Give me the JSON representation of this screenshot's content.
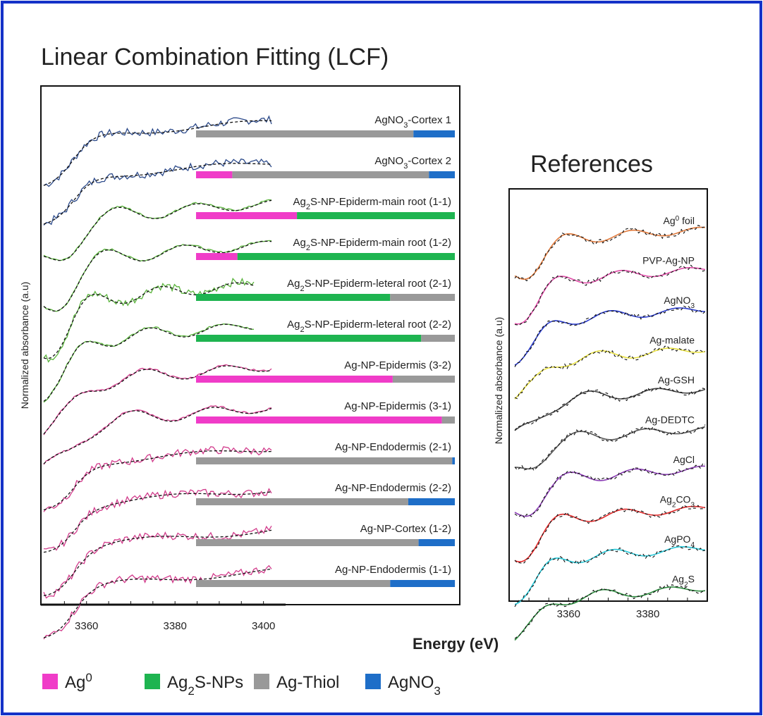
{
  "title": "Linear Combination Fitting (LCF)",
  "references_title": "References",
  "xlabel": "Energy (eV)",
  "colors": {
    "frame": "#1432c8",
    "Ag0": "#f03cc8",
    "Ag2S-NPs": "#1eb450",
    "Ag-Thiol": "#999999",
    "AgNO3": "#1e6ec8"
  },
  "legend": [
    {
      "key": "Ag0",
      "label": "Ag",
      "sup": "0",
      "color": "#f03cc8"
    },
    {
      "key": "Ag2S-NPs",
      "label": "Ag",
      "sub": "2",
      "rest": "S-NPs",
      "color": "#1eb450"
    },
    {
      "key": "Ag-Thiol",
      "label": "Ag-Thiol",
      "color": "#999999"
    },
    {
      "key": "AgNO3",
      "label": "AgNO",
      "sub": "3",
      "color": "#1e6ec8"
    }
  ],
  "chart_data": [
    {
      "type": "line",
      "panel": "LCF",
      "ylabel": "Normalized absorbance (a.u)",
      "xlim": [
        3350,
        3405
      ],
      "xticks": [
        "3360",
        "3380",
        "3400"
      ],
      "series": [
        {
          "label": "AgNO3-Cortex 1",
          "parts": [
            "AgNO",
            {
              "sub": "3"
            },
            "-Cortex 1"
          ],
          "color": "#2c4a8a"
        },
        {
          "label": "AgNO3-Cortex 2",
          "parts": [
            "AgNO",
            {
              "sub": "3"
            },
            "-Cortex 2"
          ],
          "color": "#2c4a8a"
        },
        {
          "label": "Ag2S-NP-Epiderm-main root (1-1)",
          "parts": [
            "Ag",
            {
              "sub": "2"
            },
            "S-NP-Epiderm-main root (1-1)"
          ],
          "color": "#5ab43c"
        },
        {
          "label": "Ag2S-NP-Epiderm-main root (1-2)",
          "parts": [
            "Ag",
            {
              "sub": "2"
            },
            "S-NP-Epiderm-main root (1-2)"
          ],
          "color": "#5ab43c"
        },
        {
          "label": "Ag2S-NP-Epiderm-leteral root (2-1)",
          "parts": [
            "Ag",
            {
              "sub": "2"
            },
            "S-NP-Epiderm-leteral root (2-1)"
          ],
          "color": "#5ab43c"
        },
        {
          "label": "Ag2S-NP-Epiderm-leteral root (2-2)",
          "parts": [
            "Ag",
            {
              "sub": "2"
            },
            "S-NP-Epiderm-leteral root (2-2)"
          ],
          "color": "#5ab43c"
        },
        {
          "label": "Ag-NP-Epidermis (3-2)",
          "parts": [
            "Ag-NP-Epidermis (3-2)"
          ],
          "color": "#d23c8c"
        },
        {
          "label": "Ag-NP-Epidermis (3-1)",
          "parts": [
            "Ag-NP-Epidermis (3-1)"
          ],
          "color": "#d23c8c"
        },
        {
          "label": "Ag-NP-Endodermis (2-1)",
          "parts": [
            "Ag-NP-Endodermis (2-1)"
          ],
          "color": "#d23c8c"
        },
        {
          "label": "Ag-NP-Endodermis (2-2)",
          "parts": [
            "Ag-NP-Endodermis (2-2)"
          ],
          "color": "#d23c8c"
        },
        {
          "label": "Ag-NP-Cortex (1-2)",
          "parts": [
            "Ag-NP-Cortex (1-2)"
          ],
          "color": "#d23c8c"
        },
        {
          "label": "Ag-NP-Endodermis (1-1)",
          "parts": [
            "Ag-NP-Endodermis (1-1)"
          ],
          "color": "#d23c8c"
        }
      ]
    },
    {
      "type": "bar",
      "panel": "LCF-fractions",
      "stacked": true,
      "orientation": "horizontal",
      "components": [
        "Ag0",
        "Ag2S-NPs",
        "Ag-Thiol",
        "AgNO3"
      ],
      "categories": [
        "AgNO3-Cortex 1",
        "AgNO3-Cortex 2",
        "Ag2S-NP-Epiderm-main root (1-1)",
        "Ag2S-NP-Epiderm-main root (1-2)",
        "Ag2S-NP-Epiderm-leteral root (2-1)",
        "Ag2S-NP-Epiderm-leteral root (2-2)",
        "Ag-NP-Epidermis (3-2)",
        "Ag-NP-Epidermis (3-1)",
        "Ag-NP-Endodermis (2-1)",
        "Ag-NP-Endodermis (2-2)",
        "Ag-NP-Cortex (1-2)",
        "Ag-NP-Endodermis (1-1)"
      ],
      "values": [
        [
          0,
          0,
          84,
          16
        ],
        [
          14,
          0,
          76,
          10
        ],
        [
          39,
          61,
          0,
          0
        ],
        [
          16,
          84,
          0,
          0
        ],
        [
          0,
          75,
          25,
          0
        ],
        [
          0,
          87,
          13,
          0
        ],
        [
          76,
          0,
          24,
          0
        ],
        [
          95,
          0,
          5,
          0
        ],
        [
          0,
          0,
          99,
          1
        ],
        [
          0,
          0,
          82,
          18
        ],
        [
          0,
          0,
          86,
          14
        ],
        [
          0,
          0,
          75,
          25
        ]
      ]
    },
    {
      "type": "line",
      "panel": "References",
      "ylabel": "Normalized absorbance (a.u)",
      "xlim": [
        3345,
        3395
      ],
      "xticks": [
        "3360",
        "3380"
      ],
      "series": [
        {
          "label": "Ag0 foil",
          "parts": [
            "Ag",
            {
              "sup": "0"
            },
            " foil"
          ],
          "color": "#e07a3c"
        },
        {
          "label": "PVP-Ag-NP",
          "parts": [
            "PVP-Ag-NP"
          ],
          "color": "#e04ca8"
        },
        {
          "label": "AgNO3",
          "parts": [
            "AgNO",
            {
              "sub": "3"
            }
          ],
          "color": "#2a3ccc"
        },
        {
          "label": "Ag-malate",
          "parts": [
            "Ag-malate"
          ],
          "color": "#e8e040"
        },
        {
          "label": "Ag-GSH",
          "parts": [
            "Ag-GSH"
          ],
          "color": "#444444"
        },
        {
          "label": "Ag-DEDTC",
          "parts": [
            "Ag-DEDTC"
          ],
          "color": "#555555"
        },
        {
          "label": "AgCl",
          "parts": [
            "AgCl"
          ],
          "color": "#8a3cb4"
        },
        {
          "label": "Ag2CO3",
          "parts": [
            "Ag",
            {
              "sub": "2"
            },
            "CO",
            {
              "sub": "3"
            }
          ],
          "color": "#e02828"
        },
        {
          "label": "AgPO4",
          "parts": [
            "AgPO",
            {
              "sub": "4"
            }
          ],
          "color": "#28c8d8"
        },
        {
          "label": "Ag2S",
          "parts": [
            "Ag",
            {
              "sub": "2"
            },
            "S"
          ],
          "color": "#2a8a3c"
        }
      ]
    }
  ]
}
